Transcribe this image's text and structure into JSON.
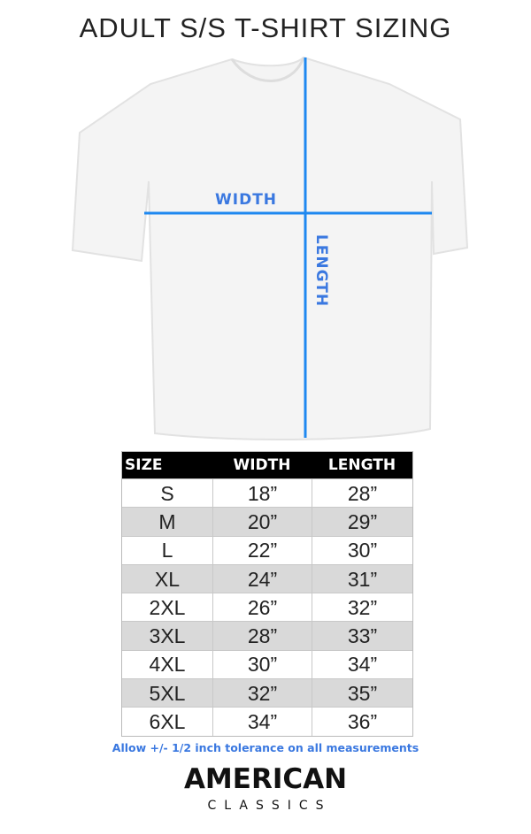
{
  "title": "ADULT S/S T-SHIRT SIZING",
  "diagram": {
    "width_label": "WIDTH",
    "length_label": "LENGTH",
    "line_color": "#1e88f0"
  },
  "table": {
    "headers": [
      "SIZE",
      "WIDTH",
      "LENGTH"
    ],
    "rows": [
      [
        "S",
        "18”",
        "28”"
      ],
      [
        "M",
        "20”",
        "29”"
      ],
      [
        "L",
        "22”",
        "30”"
      ],
      [
        "XL",
        "24”",
        "31”"
      ],
      [
        "2XL",
        "26”",
        "32”"
      ],
      [
        "3XL",
        "28”",
        "33”"
      ],
      [
        "4XL",
        "30”",
        "34”"
      ],
      [
        "5XL",
        "32”",
        "35”"
      ],
      [
        "6XL",
        "34”",
        "36”"
      ]
    ]
  },
  "note": "Allow +/- 1/2 inch tolerance on all measurements",
  "logo": {
    "line1": "AMERICAN",
    "line2": "CLASSICS"
  }
}
